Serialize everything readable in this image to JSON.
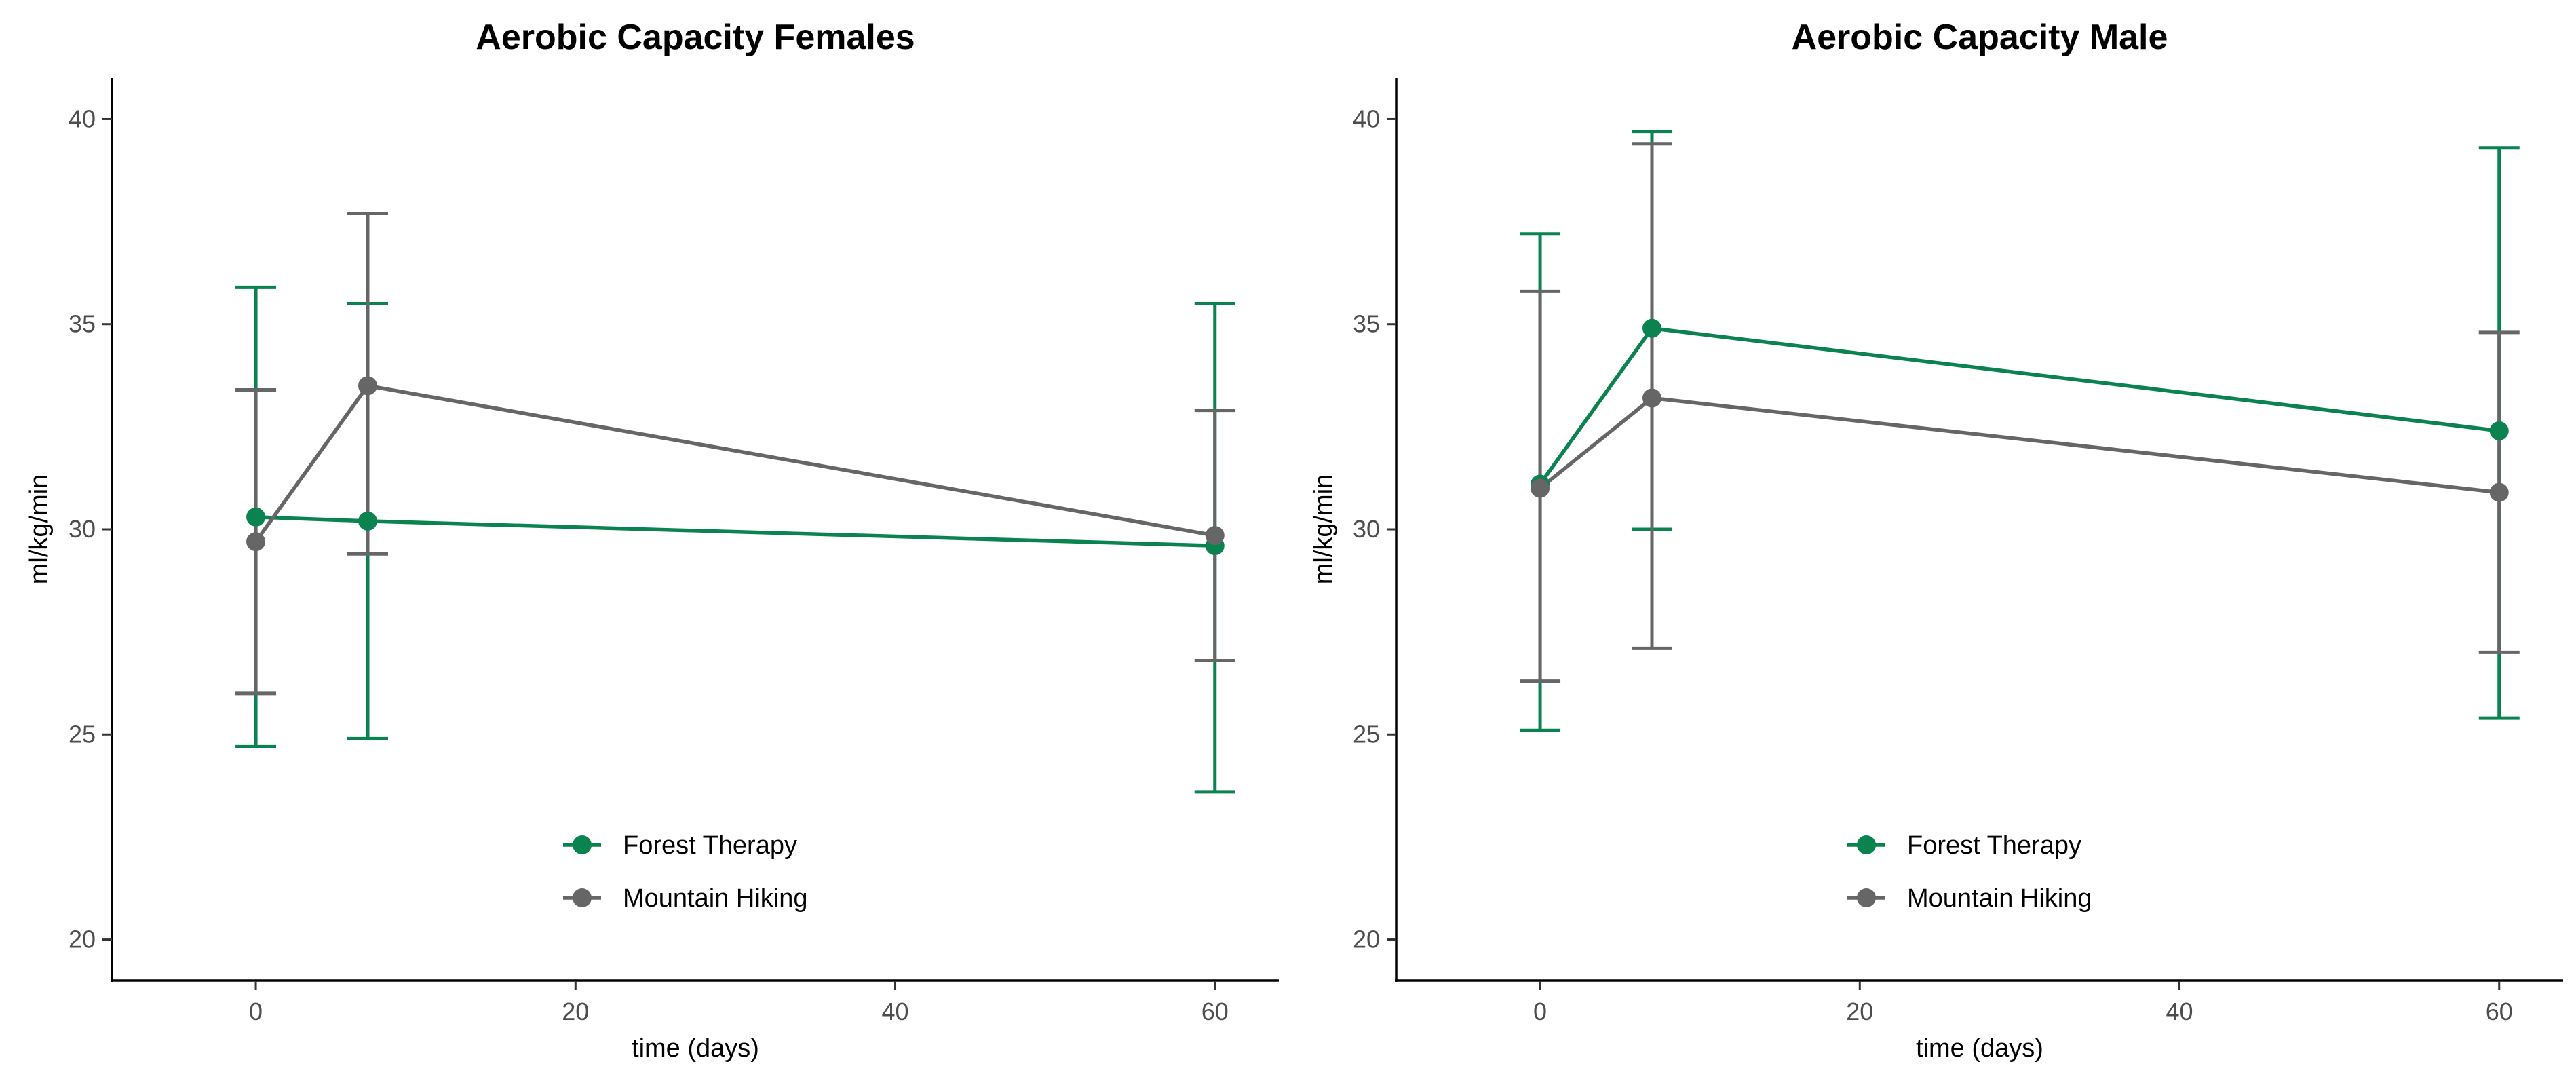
{
  "colors": {
    "forest_therapy": "#0a8350",
    "mountain_hiking": "#666666"
  },
  "chart_data": [
    {
      "type": "line",
      "title": "Aerobic Capacity Females",
      "xlabel": "time (days)",
      "ylabel": "ml/kg/min",
      "xlim": [
        -9,
        64
      ],
      "ylim": [
        19,
        41
      ],
      "xticks": [
        0,
        20,
        40,
        60
      ],
      "yticks": [
        20,
        25,
        30,
        35,
        40
      ],
      "grid": false,
      "legend_position": "bottom-center",
      "series": [
        {
          "name": "Forest Therapy",
          "color_key": "forest_therapy",
          "x": [
            0,
            7,
            60
          ],
          "y": [
            30.3,
            30.2,
            29.6
          ],
          "lower": [
            24.7,
            24.9,
            23.6
          ],
          "upper": [
            35.9,
            35.5,
            35.5
          ]
        },
        {
          "name": "Mountain Hiking",
          "color_key": "mountain_hiking",
          "x": [
            0,
            7,
            60
          ],
          "y": [
            29.7,
            33.5,
            29.85
          ],
          "lower": [
            26.0,
            29.4,
            26.8
          ],
          "upper": [
            33.4,
            37.7,
            32.9
          ]
        }
      ]
    },
    {
      "type": "line",
      "title": "Aerobic Capacity Male",
      "xlabel": "time (days)",
      "ylabel": "ml/kg/min",
      "xlim": [
        -9,
        64
      ],
      "ylim": [
        19,
        41
      ],
      "xticks": [
        0,
        20,
        40,
        60
      ],
      "yticks": [
        20,
        25,
        30,
        35,
        40
      ],
      "grid": false,
      "legend_position": "bottom-center",
      "series": [
        {
          "name": "Forest Therapy",
          "color_key": "forest_therapy",
          "x": [
            0,
            7,
            60
          ],
          "y": [
            31.1,
            34.9,
            32.4
          ],
          "lower": [
            25.1,
            30.0,
            25.4
          ],
          "upper": [
            37.2,
            39.7,
            39.3
          ]
        },
        {
          "name": "Mountain Hiking",
          "color_key": "mountain_hiking",
          "x": [
            0,
            7,
            60
          ],
          "y": [
            31.0,
            33.2,
            30.9
          ],
          "lower": [
            26.3,
            27.1,
            27.0
          ],
          "upper": [
            35.8,
            39.4,
            34.8
          ]
        }
      ]
    }
  ]
}
